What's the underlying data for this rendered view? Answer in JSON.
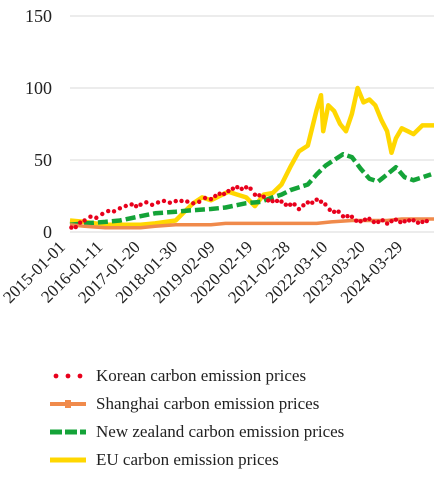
{
  "chart_data": {
    "type": "line",
    "ylim": [
      0,
      150
    ],
    "yticks": [
      0,
      50,
      100,
      150
    ],
    "grid": true,
    "legend_position": "bottom",
    "xlim": [
      "2015-01-01",
      "2025-05-01"
    ],
    "xticklabels": [
      "2015-01-01",
      "2016-01-11",
      "2017-01-20",
      "2018-01-30",
      "2019-02-09",
      "2020-02-19",
      "2021-02-28",
      "2022-03-10",
      "2023-03-20",
      "2024-03-29"
    ],
    "series": [
      {
        "name": "Korean carbon emission prices",
        "color": "#e8001c",
        "style": "dotted",
        "x": [
          "2015-01-15",
          "2015-06-01",
          "2015-10-01",
          "2016-02-01",
          "2016-06-01",
          "2016-10-01",
          "2017-01-01",
          "2017-05-01",
          "2017-09-01",
          "2018-01-01",
          "2018-05-01",
          "2018-09-01",
          "2019-01-01",
          "2019-04-01",
          "2019-07-01",
          "2019-10-01",
          "2020-01-01",
          "2020-04-01",
          "2020-07-01",
          "2020-10-01",
          "2021-01-01",
          "2021-04-01",
          "2021-07-01",
          "2021-10-01",
          "2022-01-01",
          "2022-04-01",
          "2022-07-01",
          "2022-10-01",
          "2023-01-01",
          "2023-04-01",
          "2023-07-01",
          "2023-10-01",
          "2024-01-01",
          "2024-04-01",
          "2024-07-01",
          "2024-10-01",
          "2025-01-01",
          "2025-04-01"
        ],
        "values": [
          2,
          8,
          11,
          14,
          17,
          18,
          19,
          20,
          21,
          22,
          20,
          21,
          24,
          26,
          29,
          30,
          31,
          27,
          24,
          22,
          20,
          19,
          17,
          20,
          23,
          18,
          14,
          12,
          10,
          8,
          8,
          7,
          7,
          8,
          8,
          7,
          7,
          6
        ]
      },
      {
        "name": "Shanghai carbon emission prices",
        "color": "#f08a4b",
        "style": "solid",
        "x": [
          "2015-01-01",
          "2015-06-01",
          "2016-01-01",
          "2016-06-01",
          "2017-01-01",
          "2017-06-01",
          "2018-01-01",
          "2018-06-01",
          "2019-01-01",
          "2019-06-01",
          "2020-01-01",
          "2020-06-01",
          "2021-01-01",
          "2021-06-01",
          "2022-01-01",
          "2022-06-01",
          "2023-01-01",
          "2023-06-01",
          "2024-01-01",
          "2024-06-01",
          "2025-01-01",
          "2025-05-01"
        ],
        "values": [
          5,
          4,
          3,
          3,
          3,
          4,
          5,
          5,
          5,
          6,
          6,
          6,
          6,
          6,
          6,
          7,
          8,
          8,
          8,
          9,
          9,
          9
        ]
      },
      {
        "name": "New zealand carbon emission prices",
        "color": "#14a338",
        "style": "dashed",
        "x": [
          "2015-01-01",
          "2015-06-01",
          "2016-01-01",
          "2016-06-01",
          "2017-01-01",
          "2017-06-01",
          "2018-01-01",
          "2018-06-01",
          "2019-01-01",
          "2019-06-01",
          "2020-01-01",
          "2020-06-01",
          "2020-10-01",
          "2021-01-01",
          "2021-04-01",
          "2021-07-01",
          "2021-10-01",
          "2022-01-01",
          "2022-04-01",
          "2022-07-01",
          "2022-10-01",
          "2023-01-01",
          "2023-04-01",
          "2023-07-01",
          "2023-10-01",
          "2024-01-01",
          "2024-04-01",
          "2024-07-01",
          "2024-10-01",
          "2025-01-01",
          "2025-04-01"
        ],
        "values": [
          5,
          6,
          7,
          8,
          11,
          13,
          14,
          15,
          16,
          17,
          20,
          21,
          24,
          26,
          29,
          31,
          33,
          40,
          46,
          50,
          54,
          52,
          44,
          37,
          35,
          40,
          45,
          38,
          36,
          38,
          40
        ]
      },
      {
        "name": "EU carbon emission prices",
        "color": "#ffd700",
        "style": "solid",
        "x": [
          "2015-01-01",
          "2015-06-01",
          "2016-01-01",
          "2016-06-01",
          "2017-01-01",
          "2017-06-01",
          "2018-01-01",
          "2018-04-01",
          "2018-07-01",
          "2018-10-01",
          "2019-01-01",
          "2019-04-01",
          "2019-07-01",
          "2019-10-01",
          "2020-01-01",
          "2020-04-01",
          "2020-07-01",
          "2020-10-01",
          "2021-01-01",
          "2021-04-01",
          "2021-07-01",
          "2021-10-01",
          "2022-01-01",
          "2022-02-15",
          "2022-03-10",
          "2022-05-01",
          "2022-07-01",
          "2022-09-01",
          "2022-11-01",
          "2023-01-01",
          "2023-03-01",
          "2023-05-01",
          "2023-07-01",
          "2023-09-01",
          "2023-11-01",
          "2024-01-01",
          "2024-02-15",
          "2024-04-01",
          "2024-06-01",
          "2024-08-01",
          "2024-10-01",
          "2025-01-01",
          "2025-05-01"
        ],
        "values": [
          8,
          7,
          5,
          5,
          5,
          6,
          8,
          14,
          20,
          24,
          22,
          25,
          28,
          26,
          24,
          18,
          26,
          27,
          33,
          45,
          56,
          60,
          85,
          95,
          70,
          88,
          84,
          75,
          70,
          82,
          100,
          90,
          92,
          88,
          78,
          70,
          55,
          65,
          72,
          70,
          68,
          74,
          74
        ]
      }
    ]
  }
}
